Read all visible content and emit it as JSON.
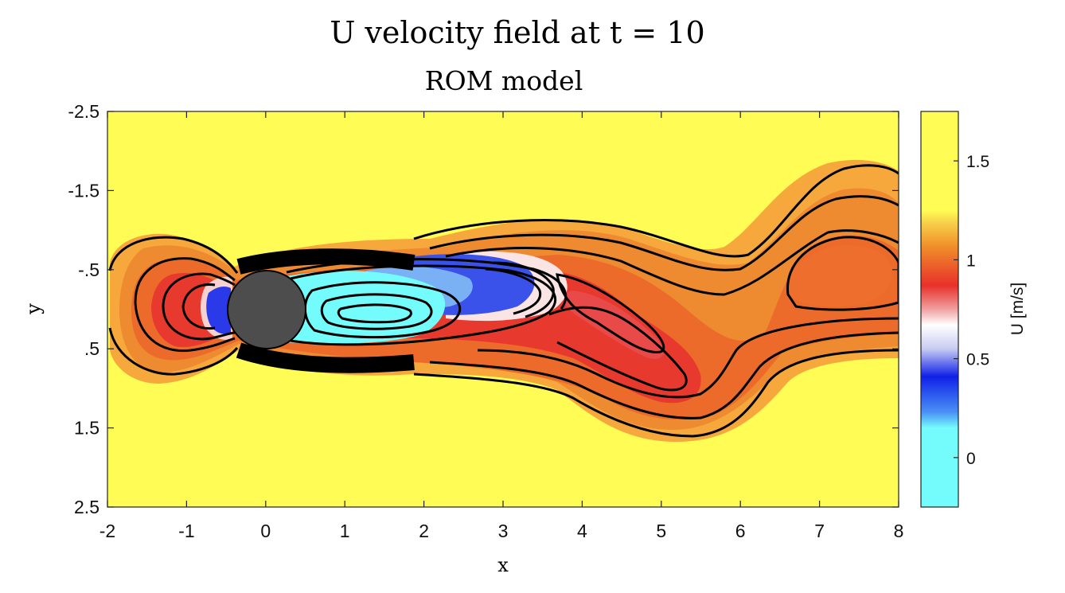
{
  "chart_data": {
    "type": "contour",
    "title": "U velocity field at t = 10",
    "subtitle": "ROM model",
    "xlabel": "x",
    "ylabel": "y",
    "xlim": [
      -2,
      8
    ],
    "ylim": [
      -2.5,
      2.5
    ],
    "y_reversed": true,
    "x_ticks": [
      "-2",
      "-1",
      "0",
      "1",
      "2",
      "3",
      "4",
      "5",
      "6",
      "7",
      "8"
    ],
    "y_ticks": [
      "-2.5",
      "-1.5",
      "-.5",
      ".5",
      "1.5",
      "2.5"
    ],
    "colorbar": {
      "label": "U [m/s]",
      "range": [
        -0.25,
        1.75
      ],
      "ticks": [
        "0",
        "0.5",
        "1",
        "1.5"
      ],
      "colors": {
        "low": "#74fcfc",
        "blue": "#1020e8",
        "white": "#ffffff",
        "red": "#e8302a",
        "orange": "#f0902a",
        "high": "#fffc55"
      }
    },
    "cylinder": {
      "center": [
        0,
        0
      ],
      "radius": 0.5,
      "color": "#4d4d4d"
    },
    "features": [
      {
        "type": "wake recirculation",
        "center": [
          1.2,
          0.05
        ],
        "value": "low"
      },
      {
        "type": "high-velocity lobe",
        "center": [
          3.0,
          -0.5
        ],
        "value": "blue"
      },
      {
        "type": "vortex core",
        "center": [
          4.8,
          0.3
        ],
        "value": "red"
      },
      {
        "type": "vortex core",
        "center": [
          7.4,
          -0.4
        ],
        "value": "orange"
      }
    ]
  }
}
